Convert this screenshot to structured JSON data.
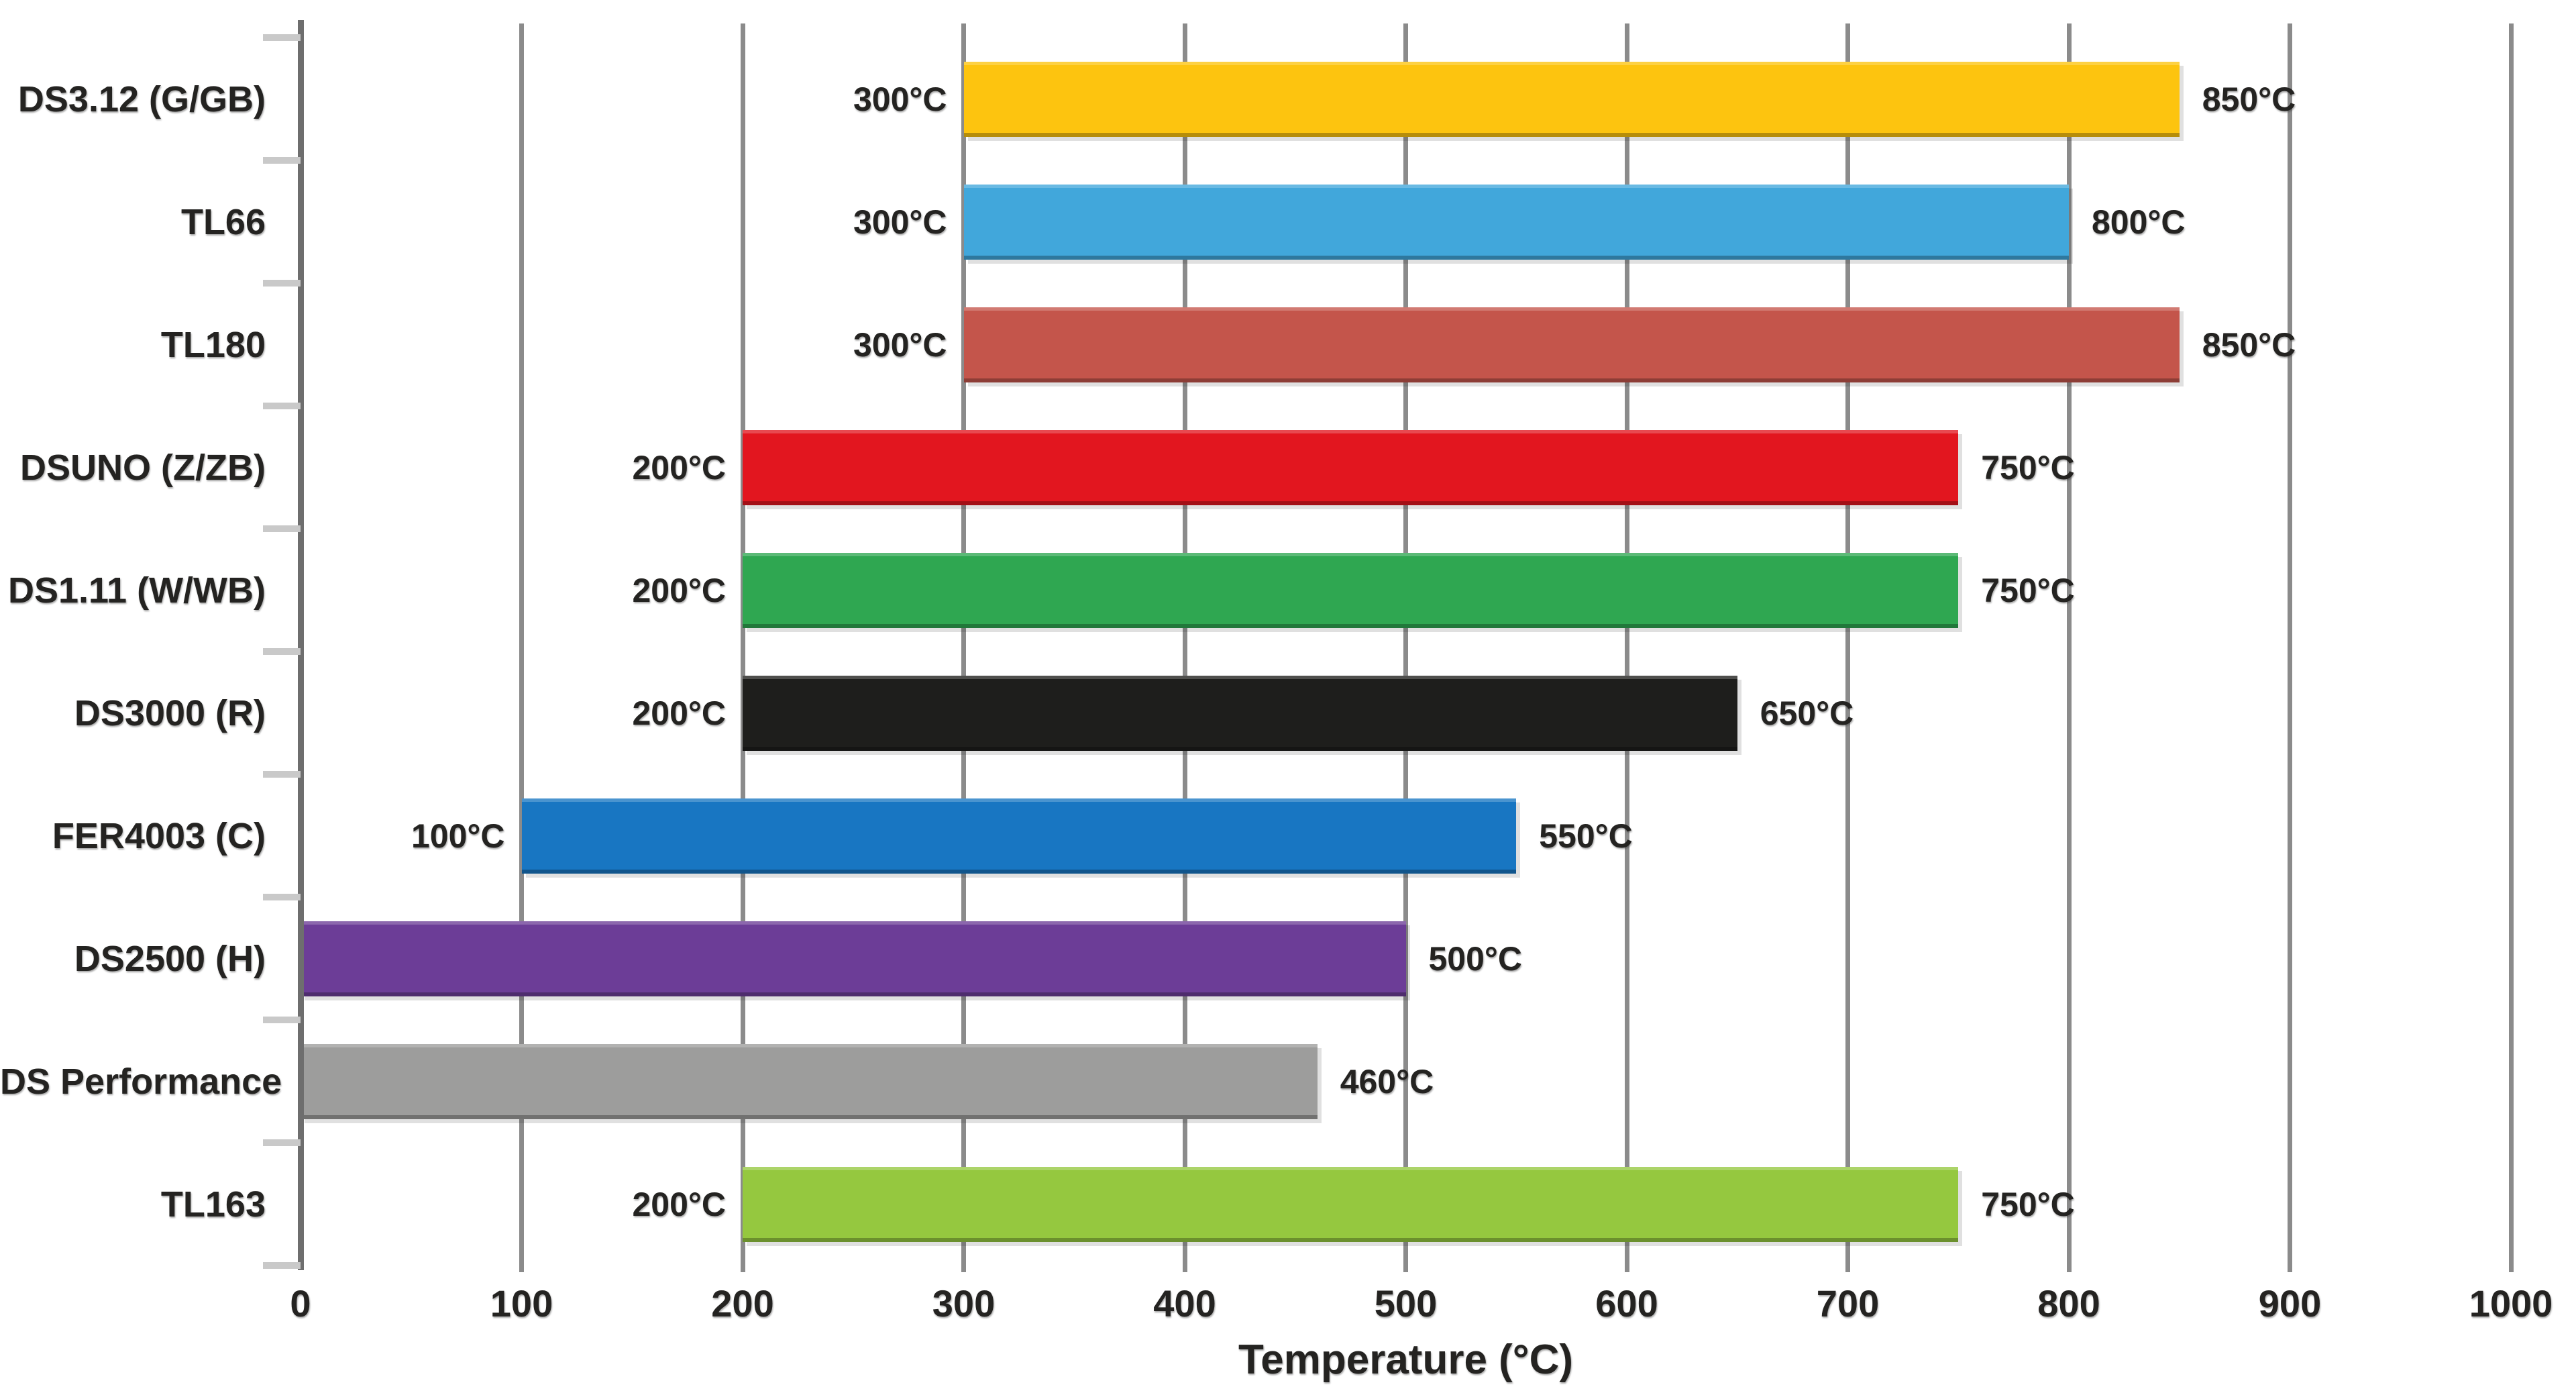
{
  "chart_data": {
    "type": "bar",
    "orientation": "horizontal_range",
    "title": "",
    "xlabel": "Temperature (°C)",
    "xlim": [
      0,
      1000
    ],
    "x_tick_values": [
      0,
      100,
      200,
      300,
      400,
      500,
      600,
      700,
      800,
      900,
      1000
    ],
    "x_tick_labels": [
      "0",
      "100",
      "200",
      "300",
      "400",
      "500",
      "600",
      "700",
      "800",
      "900",
      "1000"
    ],
    "grid": true,
    "legend": false,
    "bars": [
      {
        "label": "DS3.12 (G/GB)",
        "min": 300,
        "max": 850,
        "min_label": "300°C",
        "max_label": "850°C",
        "color": "#FDC40F"
      },
      {
        "label": "TL66",
        "min": 300,
        "max": 800,
        "min_label": "300°C",
        "max_label": "800°C",
        "color": "#41A7DB"
      },
      {
        "label": "TL180",
        "min": 300,
        "max": 850,
        "min_label": "300°C",
        "max_label": "850°C",
        "color": "#C4554B"
      },
      {
        "label": "DSUNO (Z/ZB)",
        "min": 200,
        "max": 750,
        "min_label": "200°C",
        "max_label": "750°C",
        "color": "#E2161F"
      },
      {
        "label": "DS1.11 (W/WB)",
        "min": 200,
        "max": 750,
        "min_label": "200°C",
        "max_label": "750°C",
        "color": "#2FA751"
      },
      {
        "label": "DS3000 (R)",
        "min": 200,
        "max": 650,
        "min_label": "200°C",
        "max_label": "650°C",
        "color": "#1E1E1C"
      },
      {
        "label": "FER4003 (C)",
        "min": 100,
        "max": 550,
        "min_label": "100°C",
        "max_label": "550°C",
        "color": "#1876C2"
      },
      {
        "label": "DS2500 (H)",
        "min": 0,
        "max": 500,
        "min_label": "",
        "max_label": "500°C",
        "color": "#6C3D97"
      },
      {
        "label": "DS Performance",
        "min": 0,
        "max": 460,
        "min_label": "",
        "max_label": "460°C",
        "color": "#9D9D9C"
      },
      {
        "label": "TL163",
        "min": 200,
        "max": 750,
        "min_label": "200°C",
        "max_label": "750°C",
        "color": "#95C83F"
      }
    ]
  },
  "colors": {
    "gridline": "#8B8B8B",
    "axis": "#6E6E6E",
    "axis_tick": "#C9C9C9",
    "text": "#242321",
    "background": "#FFFFFF"
  }
}
